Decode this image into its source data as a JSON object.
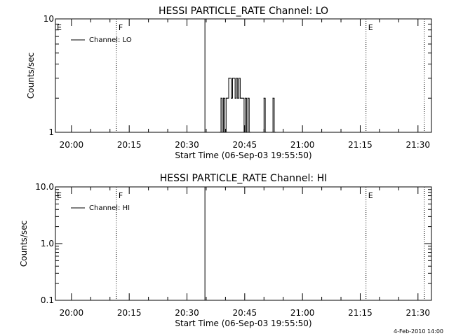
{
  "footer_stamp": "4-Feb-2010 14:00",
  "chart_data": [
    {
      "type": "line",
      "title": "HESSI PARTICLE_RATE Channel: LO",
      "xlabel": "Start Time (06-Sep-03 19:55:50)",
      "ylabel": "Counts/sec",
      "y_scale": "log",
      "ylim": [
        1,
        10
      ],
      "y_ticks": [
        "1",
        "10"
      ],
      "xlim": [
        "19:55:50",
        "21:33:30"
      ],
      "x_ticks": [
        "20:00",
        "20:15",
        "20:30",
        "20:45",
        "21:00",
        "21:15",
        "21:30"
      ],
      "grid": false,
      "legend": {
        "placement": "top-left",
        "entries": [
          "Channel: LO"
        ]
      },
      "markers": [
        {
          "time": "20:11:40",
          "label": "F",
          "style": "dotted"
        },
        {
          "time": "20:34:40",
          "label": "",
          "style": "solid"
        },
        {
          "time": "21:16:30",
          "label": "E",
          "style": "dotted"
        },
        {
          "time": "21:31:40",
          "label": "",
          "style": "dotted"
        }
      ],
      "corner_labels": [
        "E"
      ],
      "series": [
        {
          "x": [
            "20:38:30",
            "20:38:50",
            "20:39:10",
            "20:39:30",
            "20:39:50",
            "20:40:10",
            "20:40:30",
            "20:40:50",
            "20:41:10",
            "20:41:30",
            "20:41:50",
            "20:42:10",
            "20:42:30",
            "20:42:50",
            "20:43:10",
            "20:43:30",
            "20:43:50",
            "20:44:10",
            "20:44:30",
            "20:44:50",
            "20:45:10",
            "20:45:30",
            "20:45:50",
            "20:46:10",
            "20:46:30",
            "20:49:40",
            "20:50:00",
            "20:50:20",
            "20:50:40",
            "20:52:00",
            "20:52:20",
            "20:52:40",
            "20:53:00"
          ],
          "values": [
            1,
            2,
            1,
            2,
            1,
            2,
            2,
            3,
            3,
            2,
            3,
            3,
            2,
            3,
            2,
            3,
            2,
            2,
            2,
            1,
            2,
            1,
            2,
            1,
            1,
            1,
            2,
            1,
            1,
            1,
            2,
            1,
            1
          ]
        }
      ]
    },
    {
      "type": "line",
      "title": "HESSI PARTICLE_RATE Channel: HI",
      "xlabel": "Start Time (06-Sep-03 19:55:50)",
      "ylabel": "Counts/sec",
      "y_scale": "log",
      "ylim": [
        0.1,
        10
      ],
      "y_ticks": [
        "0.1",
        "1.0",
        "10.0"
      ],
      "xlim": [
        "19:55:50",
        "21:33:30"
      ],
      "x_ticks": [
        "20:00",
        "20:15",
        "20:30",
        "20:45",
        "21:00",
        "21:15",
        "21:30"
      ],
      "grid": false,
      "legend": {
        "placement": "top-left",
        "entries": [
          "Channel: HI"
        ]
      },
      "markers": [
        {
          "time": "20:11:40",
          "label": "F",
          "style": "dotted"
        },
        {
          "time": "20:34:40",
          "label": "",
          "style": "solid"
        },
        {
          "time": "21:16:30",
          "label": "E",
          "style": "dotted"
        },
        {
          "time": "21:31:40",
          "label": "",
          "style": "dotted"
        }
      ],
      "corner_labels": [
        "E"
      ],
      "series": [
        {
          "x": [],
          "values": []
        }
      ]
    }
  ]
}
